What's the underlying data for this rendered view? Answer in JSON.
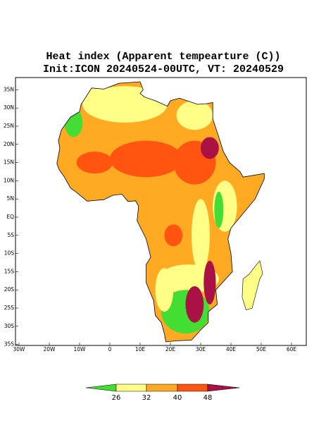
{
  "title": [
    "Heat index (Apparent tempearture (C))",
    "Init:ICON 20240524-00UTC, VT: 20240529"
  ],
  "map": {
    "lon_labels": [
      "30W",
      "20W",
      "10W",
      "0",
      "10E",
      "20E",
      "30E",
      "40E",
      "50E",
      "60E"
    ],
    "lat_labels": [
      "35N",
      "30N",
      "25N",
      "20N",
      "15N",
      "10N",
      "5N",
      "EQ",
      "5S",
      "10S",
      "15S",
      "20S",
      "25S",
      "30S",
      "35S"
    ]
  },
  "colorbar": {
    "labels": [
      26,
      32,
      40,
      48
    ]
  }
}
